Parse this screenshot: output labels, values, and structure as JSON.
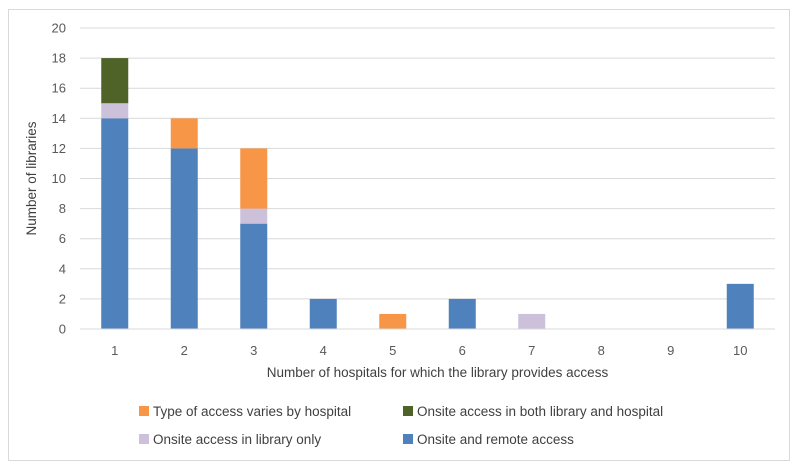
{
  "chart_data": {
    "type": "bar",
    "stacked": true,
    "categories": [
      "1",
      "2",
      "3",
      "4",
      "5",
      "6",
      "7",
      "8",
      "9",
      "10"
    ],
    "series": [
      {
        "name": "Onsite and remote access",
        "color": "#4f81bd",
        "values": [
          14,
          12,
          7,
          2,
          0,
          2,
          0,
          0,
          0,
          3
        ]
      },
      {
        "name": "Onsite access in library only",
        "color": "#ccc0da",
        "values": [
          1,
          0,
          1,
          0,
          0,
          0,
          1,
          0,
          0,
          0
        ]
      },
      {
        "name": "Type of access varies by hospital",
        "color": "#f79646",
        "values": [
          0,
          2,
          4,
          0,
          1,
          0,
          0,
          0,
          0,
          0
        ]
      },
      {
        "name": "Onsite access in both library and hospital",
        "color": "#4f6228",
        "values": [
          3,
          0,
          0,
          0,
          0,
          0,
          0,
          0,
          0,
          0
        ]
      }
    ],
    "xlabel": "Number of hospitals for which the library provides access",
    "ylabel": "Number of libraries",
    "ylim": [
      0,
      20
    ],
    "yticks": [
      0,
      2,
      4,
      6,
      8,
      10,
      12,
      14,
      16,
      18,
      20
    ],
    "grid": true,
    "legend_position": "bottom",
    "legend_order": [
      "Type of access varies by hospital",
      "Onsite access in both library and hospital",
      "Onsite access in library only",
      "Onsite and remote access"
    ]
  }
}
